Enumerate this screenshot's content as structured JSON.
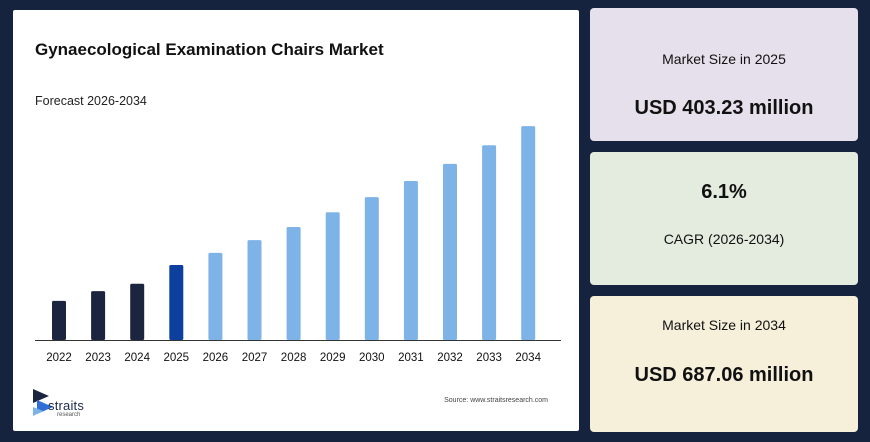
{
  "chart_data": {
    "type": "bar",
    "title": "Gynaecological Examination Chairs Market",
    "subtitle": "Forecast 2026-2034",
    "categories": [
      "2022",
      "2023",
      "2024",
      "2025",
      "2026",
      "2027",
      "2028",
      "2029",
      "2030",
      "2031",
      "2032",
      "2033",
      "2034"
    ],
    "values": [
      330,
      350,
      365,
      403.23,
      428,
      454,
      481,
      511,
      542,
      575,
      610,
      648,
      687.06
    ],
    "ylim": [
      250,
      720
    ],
    "colors": {
      "historical": "#1c2540",
      "base_year": "#0c3f9e",
      "forecast": "#7eb3e8"
    },
    "bar_color_groups": [
      "historical",
      "historical",
      "historical",
      "base_year",
      "forecast",
      "forecast",
      "forecast",
      "forecast",
      "forecast",
      "forecast",
      "forecast",
      "forecast",
      "forecast"
    ],
    "xlabel": "",
    "ylabel": "",
    "grid": false
  },
  "branding": {
    "logo_word": "straits",
    "logo_sub": "research",
    "source": "Source: www.straitsresearch.com"
  },
  "cards": {
    "market_2025": {
      "label": "Market Size in 2025",
      "value": "USD 403.23 million"
    },
    "cagr": {
      "value": "6.1%",
      "label": "CAGR (2026-2034)"
    },
    "market_2034": {
      "label": "Market Size in 2034",
      "value": "USD 687.06 million"
    }
  }
}
